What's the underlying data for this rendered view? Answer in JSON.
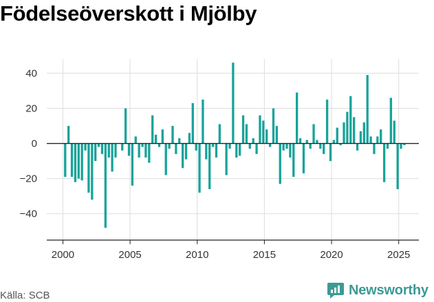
{
  "title": "Födelseöverskott i Mjölby",
  "source": "Källa: SCB",
  "brand": {
    "name": "Newsworthy",
    "icon": "newsworthy-logo-icon"
  },
  "colors": {
    "bar": "#18a39a",
    "grid": "#dddddd",
    "zero_line": "#222222",
    "axis": "#222222",
    "brand": "#3c9a94"
  },
  "chart_data": {
    "type": "bar",
    "title": "Födelseöverskott i Mjölby",
    "xlabel": "",
    "ylabel": "",
    "xlim": [
      1998.8,
      2026.5
    ],
    "ylim": [
      -55,
      48
    ],
    "grid": true,
    "x_ticks": [
      2000,
      2005,
      2010,
      2015,
      2020,
      2025
    ],
    "x_tick_labels": [
      "2000",
      "2005",
      "2010",
      "2015",
      "2020",
      "2025"
    ],
    "y_ticks": [
      -40,
      -20,
      0,
      20,
      40
    ],
    "y_tick_labels": [
      "−40",
      "−20",
      "0",
      "20",
      "40"
    ],
    "series": [
      {
        "x": [
          2000.17,
          2000.42,
          2000.67,
          2000.92,
          2001.17,
          2001.42,
          2001.67,
          2001.92,
          2002.17,
          2002.42,
          2002.67,
          2002.92,
          2003.17,
          2003.42,
          2003.67,
          2003.92,
          2004.17,
          2004.42,
          2004.67,
          2004.92,
          2005.17,
          2005.42,
          2005.67,
          2005.92,
          2006.17,
          2006.42,
          2006.67,
          2006.92,
          2007.17,
          2007.42,
          2007.67,
          2007.92,
          2008.17,
          2008.42,
          2008.67,
          2008.92,
          2009.17,
          2009.42,
          2009.67,
          2009.92,
          2010.17,
          2010.42,
          2010.67,
          2010.92,
          2011.17,
          2011.42,
          2011.67,
          2011.92,
          2012.17,
          2012.42,
          2012.67,
          2012.92,
          2013.17,
          2013.42,
          2013.67,
          2013.92,
          2014.17,
          2014.42,
          2014.67,
          2014.92,
          2015.17,
          2015.42,
          2015.67,
          2015.92,
          2016.17,
          2016.42,
          2016.67,
          2016.92,
          2017.17,
          2017.42,
          2017.67,
          2017.92,
          2018.17,
          2018.42,
          2018.67,
          2018.92,
          2019.17,
          2019.42,
          2019.67,
          2019.92,
          2020.17,
          2020.42,
          2020.67,
          2020.92,
          2021.17,
          2021.42,
          2021.67,
          2021.92,
          2022.17,
          2022.42,
          2022.67,
          2022.92,
          2023.17,
          2023.42,
          2023.67,
          2023.92,
          2024.17,
          2024.42,
          2024.67,
          2024.92,
          2025.17,
          2025.42
        ],
        "values": [
          -19,
          10,
          -19,
          -22,
          -20,
          -21,
          -4,
          -28,
          -32,
          -10,
          -2,
          -6,
          -48,
          -8,
          -16,
          -8,
          0,
          -4,
          20,
          -7,
          -24,
          4,
          -8,
          -2,
          -8,
          -11,
          16,
          5,
          -2,
          8,
          -18,
          -3,
          10,
          -6,
          3,
          -14,
          -9,
          6,
          23,
          -4,
          -28,
          25,
          -9,
          -26,
          -2,
          -8,
          11,
          0,
          -18,
          -3,
          46,
          -8,
          -7,
          16,
          11,
          -3,
          3,
          -6,
          16,
          13,
          8,
          -2,
          20,
          10,
          -23,
          -4,
          -3,
          -8,
          -19,
          29,
          3,
          -17,
          2,
          -3,
          11,
          2,
          -3,
          -6,
          25,
          -10,
          2,
          9,
          -1,
          12,
          18,
          27,
          15,
          -4,
          7,
          12,
          39,
          4,
          -6,
          4,
          8,
          -22,
          -3,
          26,
          13,
          -26,
          -3,
          -1
        ]
      }
    ]
  }
}
